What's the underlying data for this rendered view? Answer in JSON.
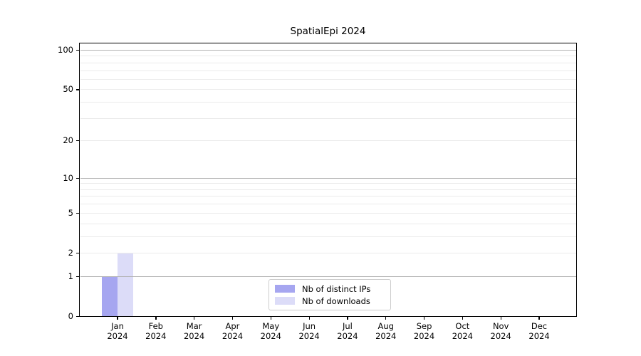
{
  "chart_data": {
    "type": "bar",
    "title": "SpatialEpi 2024",
    "year_label": "2024",
    "categories": [
      "Jan",
      "Feb",
      "Mar",
      "Apr",
      "May",
      "Jun",
      "Jul",
      "Aug",
      "Sep",
      "Oct",
      "Nov",
      "Dec"
    ],
    "series": [
      {
        "name": "Nb of distinct IPs",
        "color": "#a6a6f0",
        "values": [
          1,
          0,
          0,
          0,
          0,
          0,
          0,
          0,
          0,
          0,
          0,
          0
        ]
      },
      {
        "name": "Nb of downloads",
        "color": "#dcdcf8",
        "values": [
          2,
          0,
          0,
          0,
          0,
          0,
          0,
          0,
          0,
          0,
          0,
          0
        ]
      }
    ],
    "yscale": "log1p",
    "ylim": [
      0,
      130
    ],
    "yticks": [
      0,
      1,
      2,
      5,
      10,
      20,
      50,
      100
    ],
    "grid": true,
    "gridlines_major": [
      1,
      10,
      100
    ],
    "gridlines_minor": [
      2,
      3,
      4,
      5,
      6,
      7,
      8,
      9,
      20,
      30,
      40,
      50,
      60,
      70,
      80,
      90
    ],
    "legend_position": "bottom-center"
  },
  "legend": {
    "items": [
      "Nb of distinct IPs",
      "Nb of downloads"
    ]
  },
  "colors": {
    "background": "#ffffff",
    "axis": "#000000",
    "grid_major": "#b3b3b3",
    "grid_minor": "#ebebeb",
    "legend_border": "#cccccc",
    "bar_distinct_ips": "#a6a6f0",
    "bar_downloads": "#dcdcf8"
  }
}
